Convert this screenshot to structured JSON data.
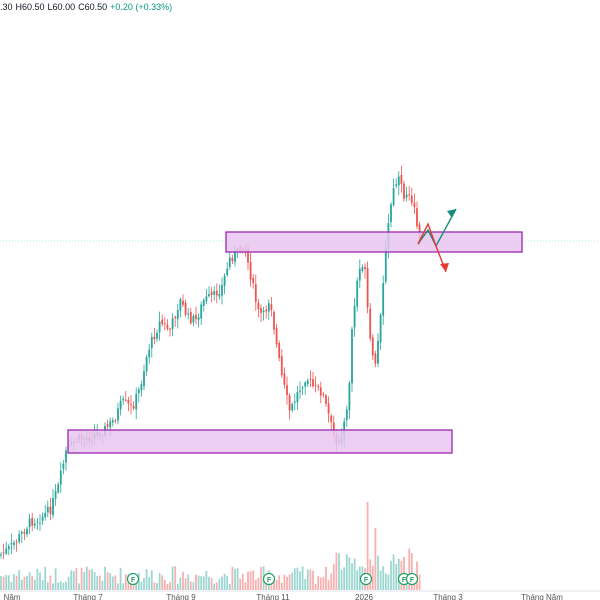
{
  "ohlc_bar": {
    "open_partial": ".30",
    "high": "H60.50",
    "low": "L60.00",
    "close": "C60.50",
    "change": "+0.20 (+0.33%)"
  },
  "colors": {
    "up": "#26a69a",
    "down": "#ef5350",
    "zone_fill": "#e7c6ef",
    "zone_stroke": "#9c27b0",
    "arrow_up": "#1a8c7c",
    "arrow_down": "#e53935",
    "fundamental_badge": "#22a064"
  },
  "chart_data": {
    "type": "candlestick",
    "x_labels": [
      "Năm",
      "Tháng 7",
      "Tháng 9",
      "Tháng 11",
      "2026",
      "Tháng 3",
      "Tháng Năm"
    ],
    "grid": false,
    "volume_pane": true,
    "fundamental_badge_label": "F",
    "fundamental_badge_count": 5
  }
}
